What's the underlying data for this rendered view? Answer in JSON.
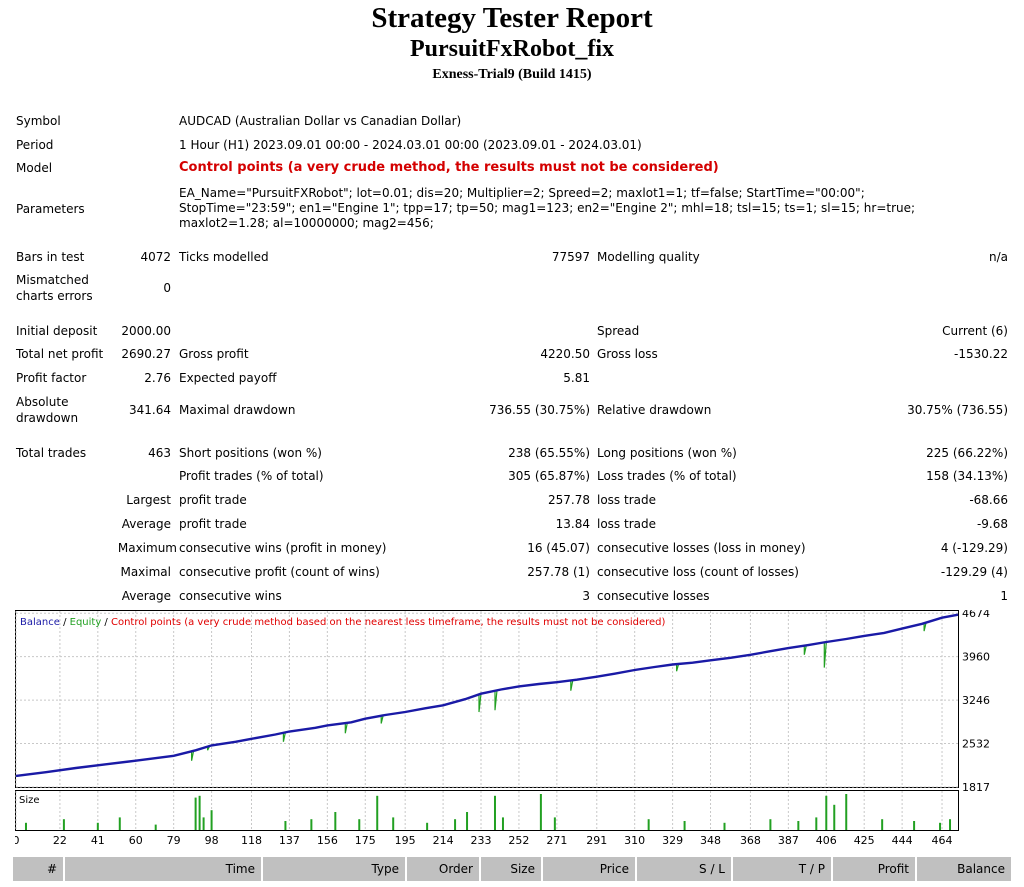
{
  "header": {
    "title": "Strategy Tester Report",
    "robot": "PursuitFxRobot_fix",
    "server": "Exness-Trial9 (Build 1415)"
  },
  "info": {
    "symbol_label": "Symbol",
    "symbol": "AUDCAD (Australian Dollar vs Canadian Dollar)",
    "period_label": "Period",
    "period": "1 Hour (H1) 2023.09.01 00:00 - 2024.03.01 00:00 (2023.09.01 - 2024.03.01)",
    "model_label": "Model",
    "model": "Control points (a very crude method, the results must not be considered)",
    "params_label": "Parameters",
    "params": "EA_Name=\"PursuitFXRobot\"; lot=0.01; dis=20; Multiplier=2; Spreed=2; maxlot1=1; tf=false; StartTime=\"00:00\"; StopTime=\"23:59\"; en1=\"Engine 1\"; tpp=17; tp=50; mag1=123; en2=\"Engine 2\"; mhl=18; tsl=15; ts=1; sl=15; hr=true; maxlot2=1.28; al=10000000; mag2=456;"
  },
  "stats": {
    "bars_label": "Bars in test",
    "bars": "4072",
    "ticks_label": "Ticks modelled",
    "ticks": "77597",
    "quality_label": "Modelling quality",
    "quality": "n/a",
    "mismatch_label_1": "Mismatched",
    "mismatch_label_2": "charts errors",
    "mismatch": "0",
    "deposit_label": "Initial deposit",
    "deposit": "2000.00",
    "spread_label": "Spread",
    "spread": "Current (6)",
    "netprofit_label": "Total net profit",
    "netprofit": "2690.27",
    "grossprofit_label": "Gross profit",
    "grossprofit": "4220.50",
    "grossloss_label": "Gross loss",
    "grossloss": "-1530.22",
    "pf_label": "Profit factor",
    "pf": "2.76",
    "ep_label": "Expected payoff",
    "ep": "5.81",
    "absdd_label_1": "Absolute",
    "absdd_label_2": "drawdown",
    "absdd": "341.64",
    "maxdd_label": "Maximal drawdown",
    "maxdd": "736.55 (30.75%)",
    "reldd_label": "Relative drawdown",
    "reldd": "30.75% (736.55)",
    "trades_label": "Total trades",
    "trades": "463",
    "short_label": "Short positions (won %)",
    "short": "238 (65.55%)",
    "long_label": "Long positions (won %)",
    "long": "225 (66.22%)",
    "profittrades_label": "Profit trades (% of total)",
    "profittrades": "305 (65.87%)",
    "losstrades_label": "Loss trades (% of total)",
    "losstrades": "158 (34.13%)",
    "largest_label": "Largest",
    "avg_label": "Average",
    "maximum_label": "Maximum",
    "maximal_label": "Maximal",
    "average2_label": "Average",
    "lpt_label": "profit trade",
    "lpt": "257.78",
    "llt_label": "loss trade",
    "llt": "-68.66",
    "apt_label": "profit trade",
    "apt": "13.84",
    "alt_label": "loss trade",
    "alt": "-9.68",
    "mcw_label": "consecutive wins (profit in money)",
    "mcw": "16 (45.07)",
    "mcl_label": "consecutive losses (loss in money)",
    "mcl": "4 (-129.29)",
    "mcp_label": "consecutive profit (count of wins)",
    "mcp": "257.78 (1)",
    "mcloss_label": "consecutive loss (count of losses)",
    "mcloss": "-129.29 (4)",
    "acw_label": "consecutive wins",
    "acw": "3",
    "acl_label": "consecutive losses",
    "acl": "1"
  },
  "chart_data": {
    "type": "line",
    "legend": [
      {
        "name": "Balance",
        "color": "#1a1aa6"
      },
      {
        "name": "Equity",
        "color": "#22a022"
      },
      {
        "name": "Control points (a very crude method based on the nearest less timeframe, the results must not be considered)",
        "color": "#e00000"
      }
    ],
    "legend_separator": " / ",
    "y_ticks": [
      1817,
      2532,
      3246,
      3960,
      4674
    ],
    "ylim": [
      1817,
      4710
    ],
    "x_ticks": [
      0,
      22,
      41,
      60,
      79,
      98,
      118,
      137,
      156,
      175,
      195,
      214,
      233,
      252,
      271,
      291,
      310,
      329,
      348,
      368,
      387,
      406,
      425,
      444,
      464
    ],
    "xlim": [
      0,
      472
    ],
    "balance": {
      "x": [
        0,
        15,
        30,
        45,
        60,
        79,
        90,
        98,
        110,
        118,
        130,
        137,
        150,
        156,
        168,
        175,
        185,
        195,
        205,
        214,
        225,
        233,
        243,
        252,
        262,
        271,
        281,
        291,
        300,
        310,
        320,
        329,
        339,
        348,
        358,
        368,
        378,
        387,
        397,
        406,
        416,
        425,
        435,
        444,
        454,
        464,
        472
      ],
      "y": [
        2000,
        2060,
        2130,
        2190,
        2250,
        2330,
        2420,
        2500,
        2560,
        2610,
        2680,
        2730,
        2790,
        2830,
        2880,
        2940,
        3000,
        3050,
        3110,
        3160,
        3260,
        3350,
        3420,
        3470,
        3510,
        3540,
        3580,
        3630,
        3680,
        3740,
        3790,
        3830,
        3860,
        3900,
        3940,
        3990,
        4050,
        4100,
        4150,
        4200,
        4250,
        4300,
        4350,
        4420,
        4500,
        4600,
        4650
      ]
    },
    "equity_dips": [
      {
        "x": 88,
        "y": 2250
      },
      {
        "x": 96,
        "y": 2420
      },
      {
        "x": 134,
        "y": 2560
      },
      {
        "x": 165,
        "y": 2700
      },
      {
        "x": 183,
        "y": 2860
      },
      {
        "x": 232,
        "y": 3050
      },
      {
        "x": 240,
        "y": 3080
      },
      {
        "x": 278,
        "y": 3400
      },
      {
        "x": 331,
        "y": 3720
      },
      {
        "x": 395,
        "y": 3990
      },
      {
        "x": 405,
        "y": 3780
      },
      {
        "x": 455,
        "y": 4380
      }
    ],
    "size_ylabel": "Size",
    "size_bars": [
      {
        "x": 5,
        "v": 0.2
      },
      {
        "x": 24,
        "v": 0.3
      },
      {
        "x": 41,
        "v": 0.2
      },
      {
        "x": 52,
        "v": 0.35
      },
      {
        "x": 70,
        "v": 0.15
      },
      {
        "x": 90,
        "v": 0.9
      },
      {
        "x": 92,
        "v": 0.95
      },
      {
        "x": 94,
        "v": 0.35
      },
      {
        "x": 98,
        "v": 0.55
      },
      {
        "x": 135,
        "v": 0.25
      },
      {
        "x": 148,
        "v": 0.3
      },
      {
        "x": 160,
        "v": 0.5
      },
      {
        "x": 172,
        "v": 0.3
      },
      {
        "x": 181,
        "v": 0.95
      },
      {
        "x": 189,
        "v": 0.35
      },
      {
        "x": 206,
        "v": 0.2
      },
      {
        "x": 220,
        "v": 0.3
      },
      {
        "x": 226,
        "v": 0.5
      },
      {
        "x": 240,
        "v": 0.95
      },
      {
        "x": 244,
        "v": 0.35
      },
      {
        "x": 263,
        "v": 1.0
      },
      {
        "x": 270,
        "v": 0.35
      },
      {
        "x": 317,
        "v": 0.3
      },
      {
        "x": 335,
        "v": 0.25
      },
      {
        "x": 355,
        "v": 0.2
      },
      {
        "x": 378,
        "v": 0.3
      },
      {
        "x": 392,
        "v": 0.25
      },
      {
        "x": 401,
        "v": 0.35
      },
      {
        "x": 406,
        "v": 0.95
      },
      {
        "x": 410,
        "v": 0.7
      },
      {
        "x": 416,
        "v": 1.0
      },
      {
        "x": 434,
        "v": 0.3
      },
      {
        "x": 450,
        "v": 0.25
      },
      {
        "x": 463,
        "v": 0.2
      },
      {
        "x": 468,
        "v": 0.3
      }
    ]
  },
  "table_header": [
    "#",
    "Time",
    "Type",
    "Order",
    "Size",
    "Price",
    "S / L",
    "T / P",
    "Profit",
    "Balance"
  ]
}
